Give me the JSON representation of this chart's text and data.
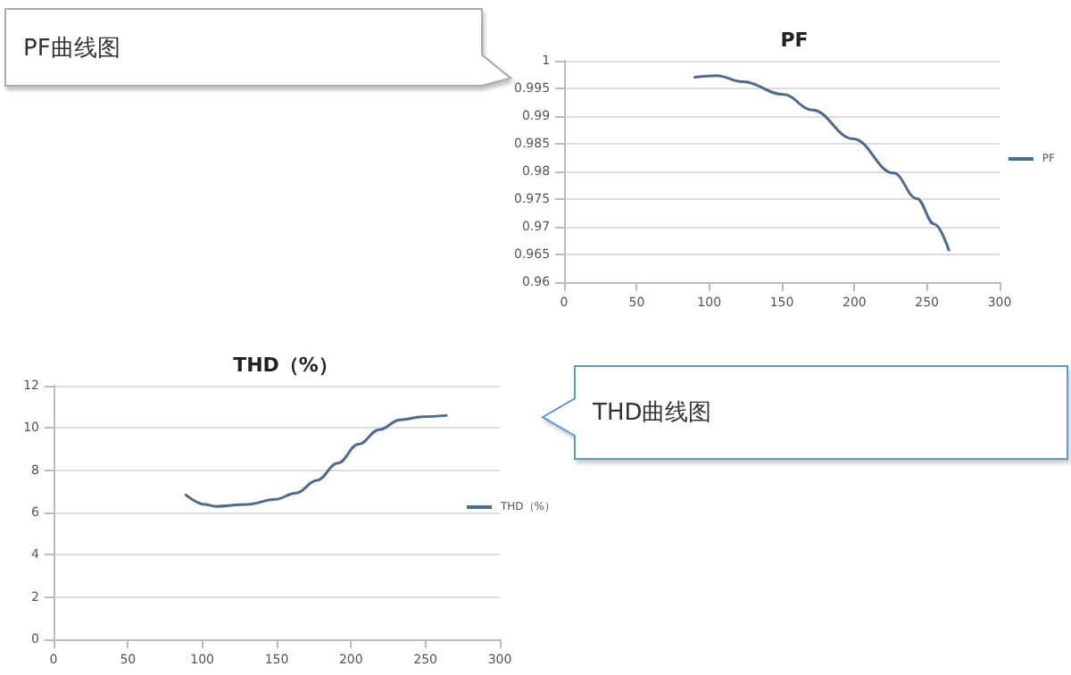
{
  "chart_data": [
    {
      "type": "line",
      "title": "PF",
      "annotations": [
        "PF曲线图"
      ],
      "x": [
        90,
        105,
        123,
        151,
        171,
        199,
        227,
        243,
        255,
        265
      ],
      "series": [
        {
          "name": "PF",
          "color": "#4a6b94",
          "values": [
            0.997,
            0.9973,
            0.9962,
            0.9939,
            0.9911,
            0.9859,
            0.9797,
            0.9751,
            0.9705,
            0.9658
          ]
        }
      ],
      "xlim": [
        0,
        300
      ],
      "xticks": [
        0,
        50,
        100,
        150,
        200,
        250,
        300
      ],
      "ylim": [
        0.96,
        1
      ],
      "yticks": [
        0.96,
        0.965,
        0.97,
        0.975,
        0.98,
        0.985,
        0.99,
        0.995,
        1
      ],
      "grid": "y",
      "legend": "right",
      "marker": "none",
      "line_style": "solid"
    },
    {
      "type": "line",
      "title": "THD（%）",
      "annotations": [
        "THD曲线图"
      ],
      "x": [
        89,
        102,
        109,
        130,
        149,
        163,
        177,
        191,
        205,
        219,
        233,
        248,
        264
      ],
      "series": [
        {
          "name": "THD（%）",
          "color": "#4a6b94",
          "values": [
            6.83,
            6.38,
            6.29,
            6.38,
            6.62,
            6.92,
            7.52,
            8.33,
            9.23,
            9.92,
            10.38,
            10.53,
            10.59
          ]
        }
      ],
      "xlim": [
        0,
        300
      ],
      "xticks": [
        0,
        50,
        100,
        150,
        200,
        250,
        300
      ],
      "ylim": [
        0,
        12
      ],
      "yticks": [
        0,
        2,
        4,
        6,
        8,
        10,
        12
      ],
      "grid": "y",
      "legend": "right",
      "marker": "none",
      "line_style": "solid"
    }
  ]
}
